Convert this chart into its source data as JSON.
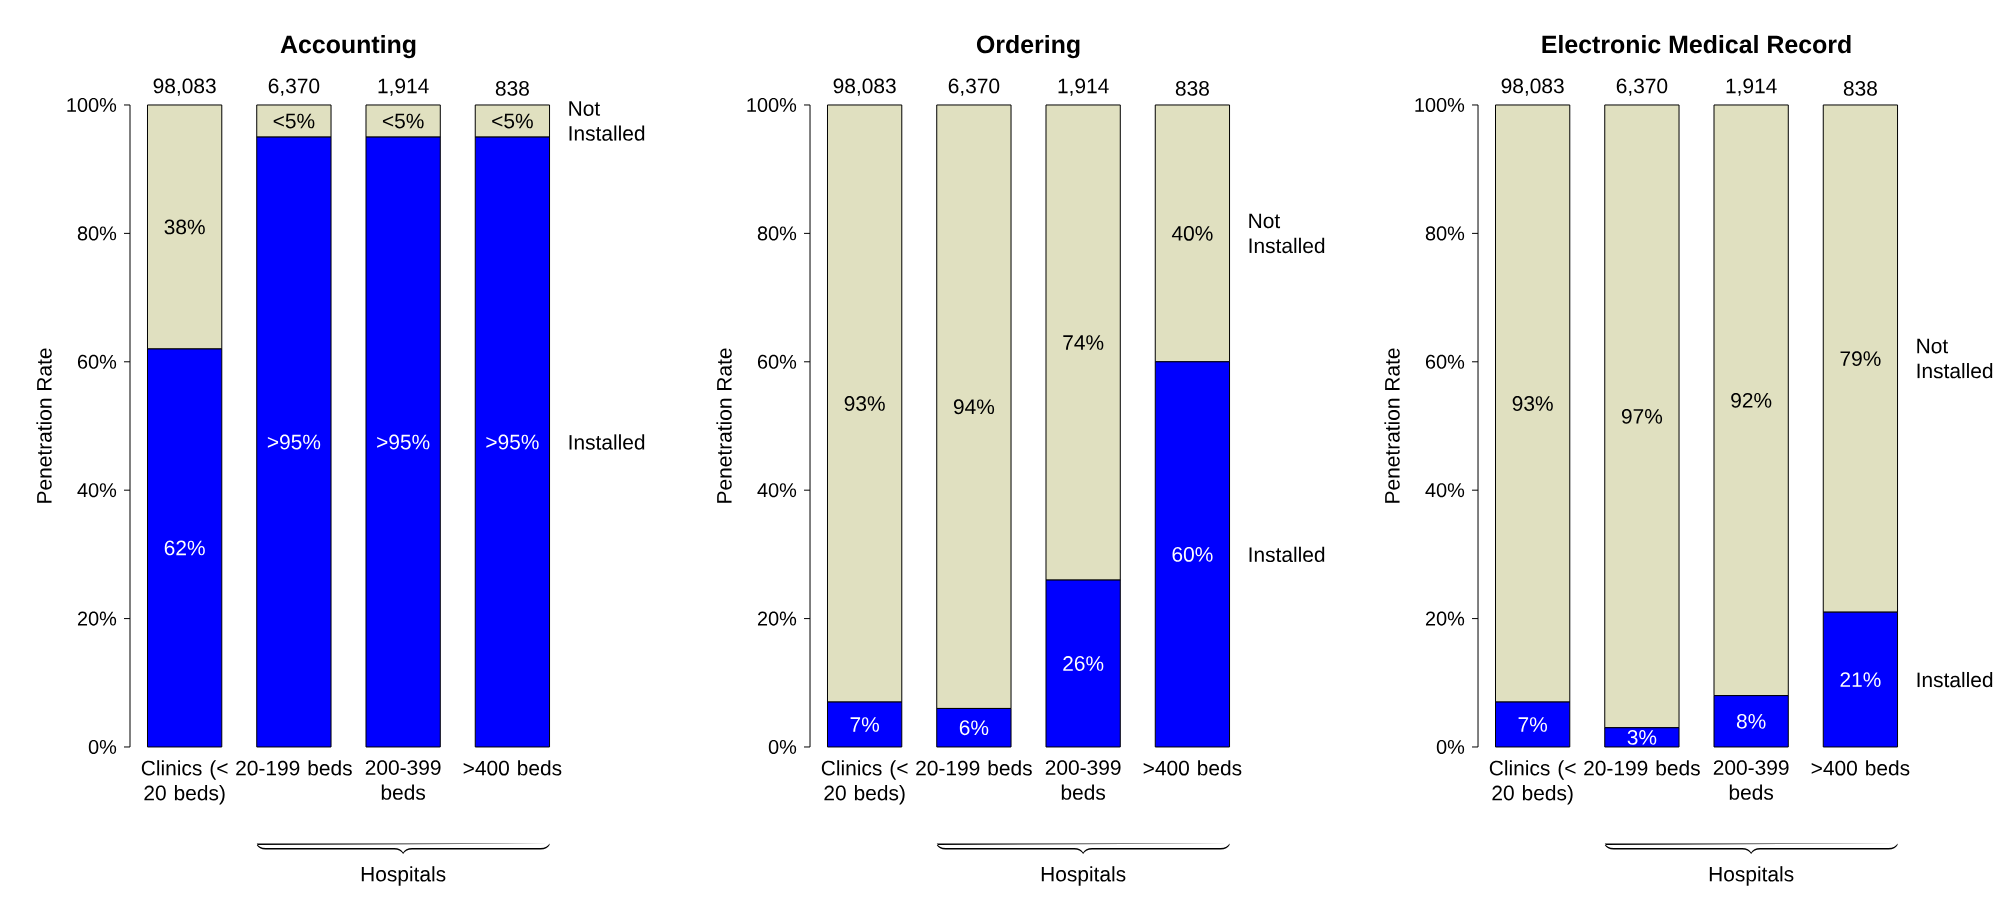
{
  "chart_data": [
    {
      "type": "bar",
      "stacked": true,
      "title": "Accounting",
      "ylabel": "Penetration Rate",
      "categories": [
        "Clinics (< 20 beds)",
        "20-199 beds",
        "200-399 beds",
        ">400 beds"
      ],
      "series": [
        {
          "name": "Installed",
          "color": "#0000ff",
          "values": [
            62,
            95,
            95,
            95
          ],
          "value_labels": [
            "62%",
            ">95%",
            ">95%",
            ">95%"
          ]
        },
        {
          "name": "Not Installed",
          "color": "#e0e0c0",
          "values": [
            38,
            5,
            5,
            5
          ],
          "value_labels": [
            "38%",
            "<5%",
            "<5%",
            "<5%"
          ]
        }
      ],
      "ylim": [
        0,
        100
      ],
      "yticks": [
        {
          "value": 0,
          "label": "0%"
        },
        {
          "value": 20,
          "label": "20%"
        },
        {
          "value": 40,
          "label": "40%"
        },
        {
          "value": 60,
          "label": "60%"
        },
        {
          "value": 80,
          "label": "80%"
        },
        {
          "value": 100,
          "label": "100%"
        }
      ],
      "annotations": [
        "98,083",
        "6,370",
        "1,914",
        "838",
        "Hospitals"
      ]
    },
    {
      "type": "bar",
      "stacked": true,
      "title": "Ordering",
      "ylabel": "Penetration Rate",
      "categories": [
        "Clinics (< 20 beds)",
        "20-199 beds",
        "200-399 beds",
        ">400 beds"
      ],
      "series": [
        {
          "name": "Installed",
          "color": "#0000ff",
          "values": [
            7,
            6,
            26,
            60
          ],
          "value_labels": [
            "7%",
            "6%",
            "26%",
            "60%"
          ]
        },
        {
          "name": "Not Installed",
          "color": "#e0e0c0",
          "values": [
            93,
            94,
            74,
            40
          ],
          "value_labels": [
            "93%",
            "94%",
            "74%",
            "40%"
          ]
        }
      ],
      "ylim": [
        0,
        100
      ],
      "yticks": [
        {
          "value": 0,
          "label": "0%"
        },
        {
          "value": 20,
          "label": "20%"
        },
        {
          "value": 40,
          "label": "40%"
        },
        {
          "value": 60,
          "label": "60%"
        },
        {
          "value": 80,
          "label": "80%"
        },
        {
          "value": 100,
          "label": "100%"
        }
      ],
      "annotations": [
        "98,083",
        "6,370",
        "1,914",
        "838",
        "Hospitals"
      ]
    },
    {
      "type": "bar",
      "stacked": true,
      "title": "Electronic Medical Record",
      "ylabel": "Penetration Rate",
      "categories": [
        "Clinics (< 20 beds)",
        "20-199 beds",
        "200-399 beds",
        ">400 beds"
      ],
      "series": [
        {
          "name": "Installed",
          "color": "#0000ff",
          "values": [
            7,
            3,
            8,
            21
          ],
          "value_labels": [
            "7%",
            "3%",
            "8%",
            "21%"
          ]
        },
        {
          "name": "Not Installed",
          "color": "#e0e0c0",
          "values": [
            93,
            97,
            92,
            79
          ],
          "value_labels": [
            "93%",
            "97%",
            "92%",
            "79%"
          ]
        }
      ],
      "ylim": [
        0,
        100
      ],
      "yticks": [
        {
          "value": 0,
          "label": "0%"
        },
        {
          "value": 20,
          "label": "20%"
        },
        {
          "value": 40,
          "label": "40%"
        },
        {
          "value": 60,
          "label": "60%"
        },
        {
          "value": 80,
          "label": "80%"
        },
        {
          "value": 100,
          "label": "100%"
        }
      ],
      "annotations": [
        "98,083",
        "6,370",
        "1,914",
        "838",
        "Hospitals"
      ]
    }
  ]
}
